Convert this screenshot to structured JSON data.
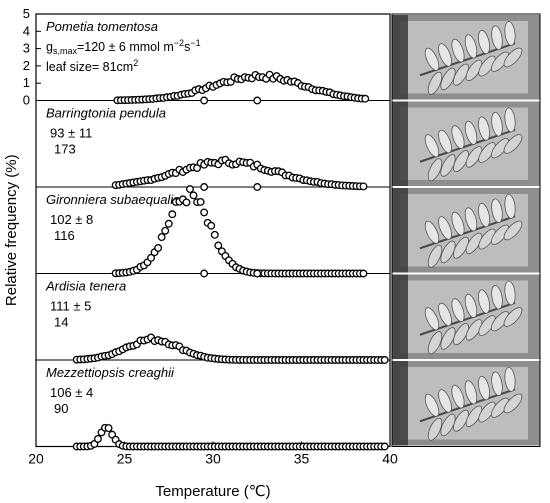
{
  "chart_data": {
    "type": "scatter",
    "xlabel": "Temperature (℃)",
    "ylabel": "Relative frequency (%)",
    "xlim": [
      20,
      40
    ],
    "ylim": [
      0,
      5
    ],
    "x_ticks": [
      "20",
      "25",
      "30",
      "35",
      "40"
    ],
    "y_ticks": [
      "0",
      "1",
      "2",
      "3",
      "4",
      "5"
    ],
    "panels": [
      {
        "species": "Pometia tomentosa",
        "gs_line": {
          "prefix": "g",
          "sub": "s,max",
          "text1": "=120 ± 6 mmol m",
          "sup1": "−2",
          "text2": "s",
          "sup2": "−1"
        },
        "leaf_line": {
          "text": "leaf size= 81cm",
          "sup": "2"
        },
        "series": {
          "x_start": 24.6,
          "x_end": 38.6,
          "center": 32.6,
          "sd": 2.6,
          "peak": 1.4
        },
        "zero_dots": [
          29.5,
          32.5
        ]
      },
      {
        "species": "Barringtonia pendula",
        "gs_value": "93 ± 11",
        "leaf_value": "173",
        "series": {
          "x_start": 24.5,
          "x_end": 38.6,
          "center": 30.8,
          "sd": 2.8,
          "peak": 1.45
        },
        "zero_dots": [
          29.5,
          32.5
        ]
      },
      {
        "species": "Gironniera subaequalis",
        "gs_value": "102 ± 8",
        "leaf_value": "116",
        "series": {
          "x_start": 24.5,
          "x_end": 38.6,
          "center": 28.6,
          "sd": 1.2,
          "peak": 4.5
        },
        "zero_dots": [
          29.5,
          32.5
        ]
      },
      {
        "species": "Ardisia tenera",
        "gs_value": "111 ± 5",
        "leaf_value": "14",
        "series": {
          "x_start": 22.3,
          "x_end": 39.8,
          "center": 26.6,
          "sd": 1.5,
          "peak": 1.2
        },
        "zero_dots": []
      },
      {
        "species": "Mezzettiopsis creaghii",
        "gs_value": "106 ± 4",
        "leaf_value": "90",
        "series": {
          "x_start": 22.3,
          "x_end": 39.8,
          "center": 24.0,
          "sd": 0.35,
          "peak": 1.1
        },
        "zero_dots": []
      }
    ]
  }
}
